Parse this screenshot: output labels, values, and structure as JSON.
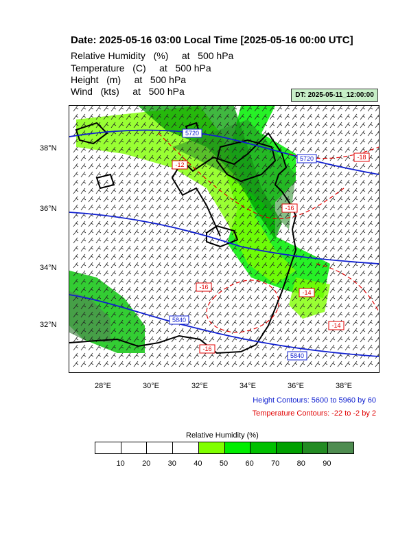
{
  "header": {
    "title": "Date: 2025-05-16  03:00 Local Time [2025-05-16  00:00 UTC]",
    "line1": "Relative Humidity   (%)     at   500 hPa",
    "line2": "Temperature   (C)     at   500 hPa",
    "line3": "Height   (m)     at   500 hPa",
    "line4": "Wind   (kts)     at   500 hPa",
    "dt_badge": "DT: 2025-05-11_12:00:00"
  },
  "axes": {
    "x_ticks": [
      "28°E",
      "30°E",
      "32°E",
      "34°E",
      "36°E",
      "38°E"
    ],
    "y_ticks": [
      "38°N",
      "36°N",
      "34°N",
      "32°N"
    ]
  },
  "contour_labels": {
    "height": [
      "5720",
      "5840",
      "5840",
      "5720"
    ],
    "temperature": [
      "-18",
      "-16",
      "-16",
      "-14",
      "-14",
      "-12",
      "-16"
    ]
  },
  "legend": {
    "height_contours": "Height Contours: 5600 to 5960 by 60",
    "temperature_contours": "Temperature Contours: -22 to -2 by 2"
  },
  "colorbar": {
    "title": "Relative Humidity   (%)",
    "labels": [
      "10",
      "20",
      "30",
      "40",
      "50",
      "60",
      "70",
      "80",
      "90"
    ],
    "colors": [
      "#ffffff",
      "#ffffff",
      "#ffffff",
      "#ffffff",
      "#80ff00",
      "#00ee00",
      "#00c000",
      "#00a000",
      "#238b23",
      "#4e8c50"
    ]
  }
}
